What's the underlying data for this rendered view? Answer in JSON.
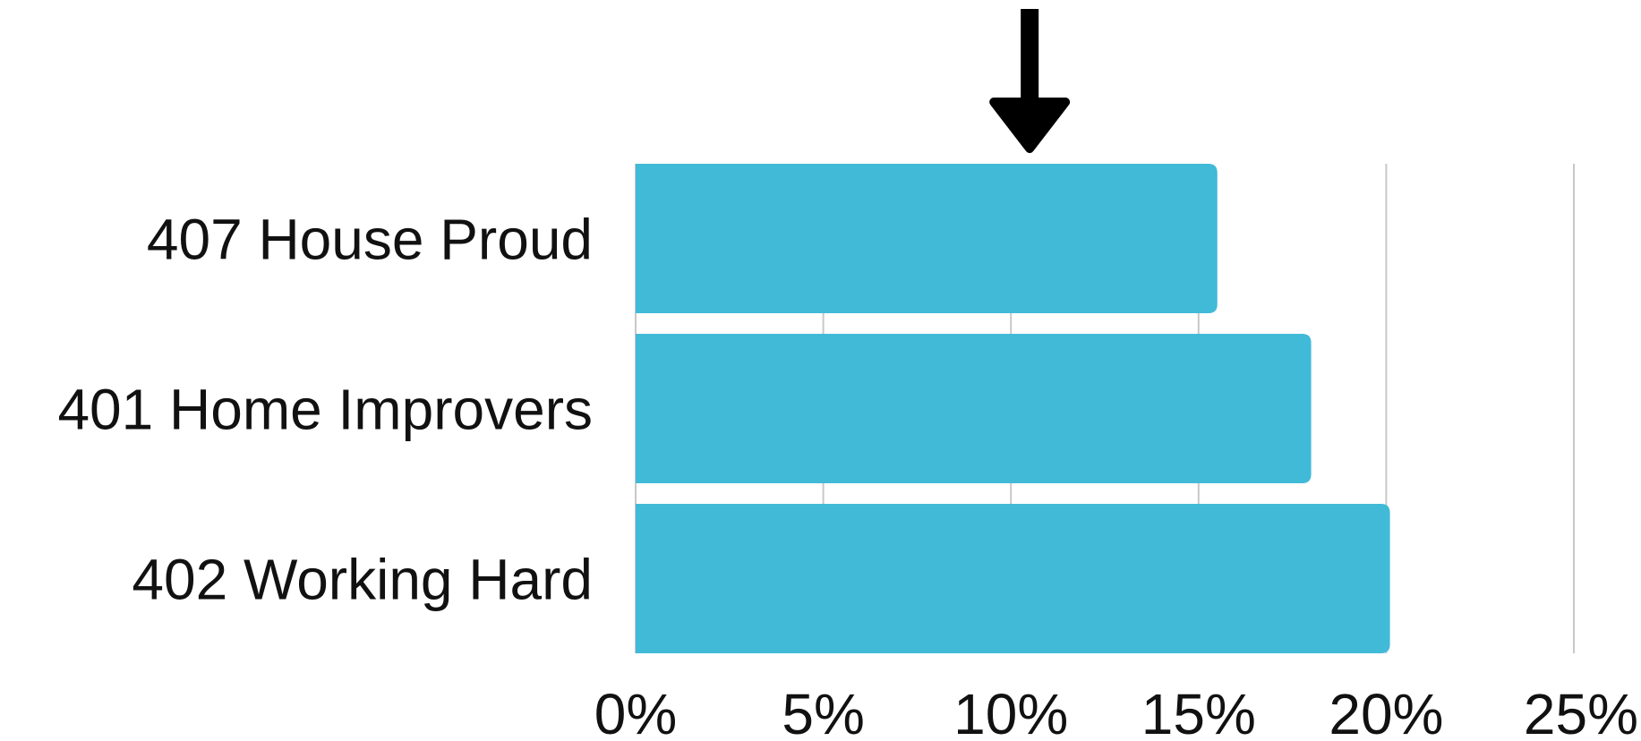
{
  "chart_data": {
    "type": "bar",
    "orientation": "horizontal",
    "categories": [
      "407 House Proud",
      "401 Home Improvers",
      "402 Working Hard"
    ],
    "series": [
      {
        "values": [
          15.5,
          18.0,
          20.1
        ],
        "color": "#41BAD8"
      }
    ],
    "x_ticks": [
      "0%",
      "5%",
      "10%",
      "15%",
      "20%",
      "25%"
    ],
    "xlim": [
      0,
      25
    ],
    "grid": "vertical",
    "gridline_color": "#c8c8c8",
    "annotation": {
      "type": "arrow-down-icon",
      "value": 10.5,
      "color": "#000000"
    },
    "title": "",
    "xlabel": "",
    "ylabel": "",
    "legend": "none"
  }
}
